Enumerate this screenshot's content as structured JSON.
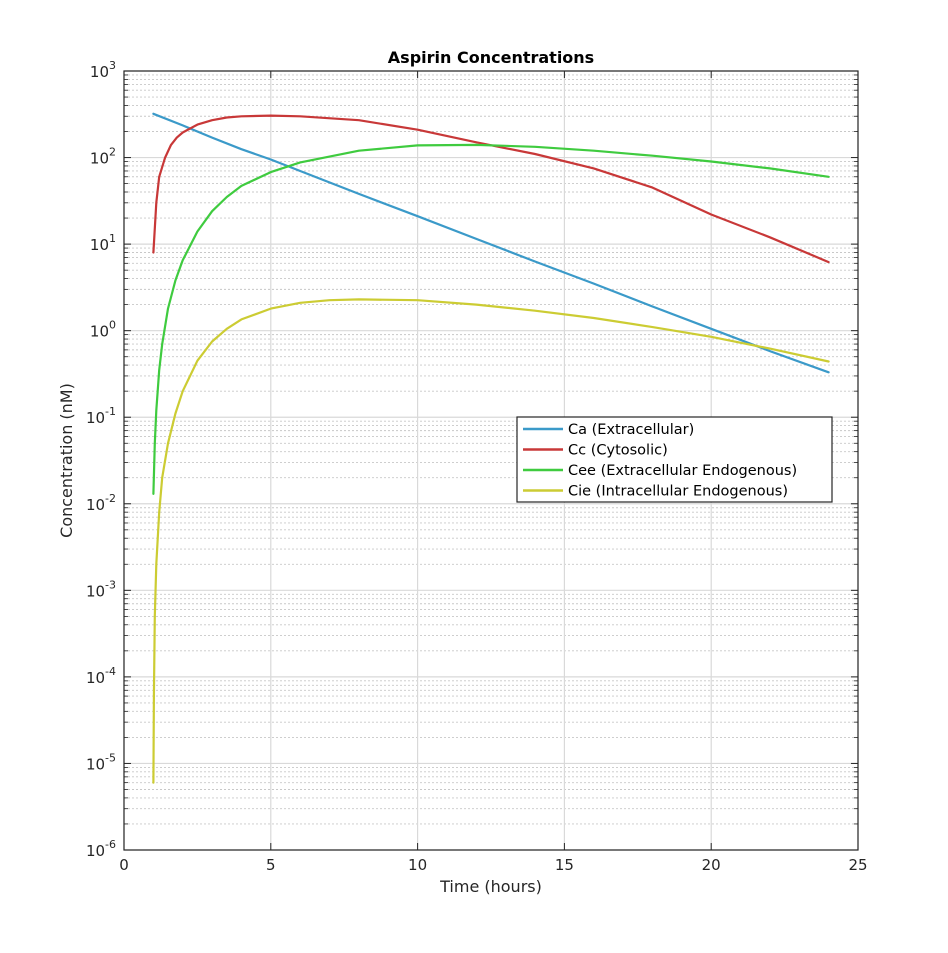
{
  "chart_data": {
    "type": "line",
    "title": "Aspirin Concentrations",
    "xlabel": "Time (hours)",
    "ylabel": "Concentration (nM)",
    "xlim": [
      0,
      25
    ],
    "ylim": [
      1e-06,
      1000
    ],
    "yscale": "log",
    "grid": true,
    "minor_grid": true,
    "legend_position": "inside-right",
    "x_ticks": [
      {
        "value": 0,
        "label": "0"
      },
      {
        "value": 5,
        "label": "5"
      },
      {
        "value": 10,
        "label": "10"
      },
      {
        "value": 15,
        "label": "15"
      },
      {
        "value": 20,
        "label": "20"
      },
      {
        "value": 25,
        "label": "25"
      }
    ],
    "y_ticks": [
      {
        "value": 1e-06,
        "base": "10",
        "exp": "-6"
      },
      {
        "value": 1e-05,
        "base": "10",
        "exp": "-5"
      },
      {
        "value": 0.0001,
        "base": "10",
        "exp": "-4"
      },
      {
        "value": 0.001,
        "base": "10",
        "exp": "-3"
      },
      {
        "value": 0.01,
        "base": "10",
        "exp": "-2"
      },
      {
        "value": 0.1,
        "base": "10",
        "exp": "-1"
      },
      {
        "value": 1,
        "base": "10",
        "exp": "0"
      },
      {
        "value": 10,
        "base": "10",
        "exp": "1"
      },
      {
        "value": 100,
        "base": "10",
        "exp": "2"
      },
      {
        "value": 1000,
        "base": "10",
        "exp": "3"
      }
    ],
    "series": [
      {
        "name": "Ca (Extracellular)",
        "color": "#3b9ac9",
        "x": [
          1,
          2,
          3,
          4,
          5,
          6,
          8,
          10,
          12,
          14,
          16,
          18,
          20,
          22,
          24
        ],
        "y": [
          320,
          235,
          170,
          125,
          95,
          70,
          38,
          21,
          11.5,
          6.3,
          3.5,
          1.9,
          1.05,
          0.58,
          0.33
        ]
      },
      {
        "name": "Cc (Cytosolic)",
        "color": "#c83838",
        "x": [
          1,
          1.1,
          1.2,
          1.4,
          1.6,
          1.8,
          2,
          2.5,
          3,
          3.5,
          4,
          5,
          6,
          8,
          10,
          12,
          14,
          16,
          18,
          20,
          22,
          24
        ],
        "y": [
          8,
          30,
          60,
          100,
          140,
          170,
          195,
          240,
          270,
          290,
          300,
          305,
          300,
          270,
          210,
          150,
          110,
          75,
          45,
          22,
          12,
          6.2
        ]
      },
      {
        "name": "Cee (Extracellular Endogenous)",
        "color": "#3fcb3f",
        "x": [
          1,
          1.05,
          1.1,
          1.2,
          1.3,
          1.5,
          1.75,
          2,
          2.5,
          3,
          3.5,
          4,
          5,
          6,
          8,
          10,
          12,
          14,
          16,
          18,
          20,
          22,
          24
        ],
        "y": [
          0.013,
          0.05,
          0.12,
          0.35,
          0.7,
          1.8,
          3.8,
          6.5,
          14,
          24,
          35,
          47,
          68,
          88,
          120,
          138,
          140,
          133,
          120,
          105,
          90,
          75,
          60
        ]
      },
      {
        "name": "Cie (Intracellular Endogenous)",
        "color": "#cccc33",
        "x": [
          1,
          1.02,
          1.05,
          1.1,
          1.2,
          1.3,
          1.5,
          1.75,
          2,
          2.5,
          3,
          3.5,
          4,
          5,
          6,
          7,
          8,
          10,
          12,
          14,
          16,
          18,
          20,
          22,
          24
        ],
        "y": [
          6e-06,
          6e-05,
          0.0005,
          0.002,
          0.008,
          0.02,
          0.05,
          0.11,
          0.2,
          0.45,
          0.75,
          1.05,
          1.35,
          1.8,
          2.1,
          2.25,
          2.3,
          2.25,
          2.0,
          1.7,
          1.4,
          1.1,
          0.85,
          0.62,
          0.44
        ]
      }
    ]
  }
}
